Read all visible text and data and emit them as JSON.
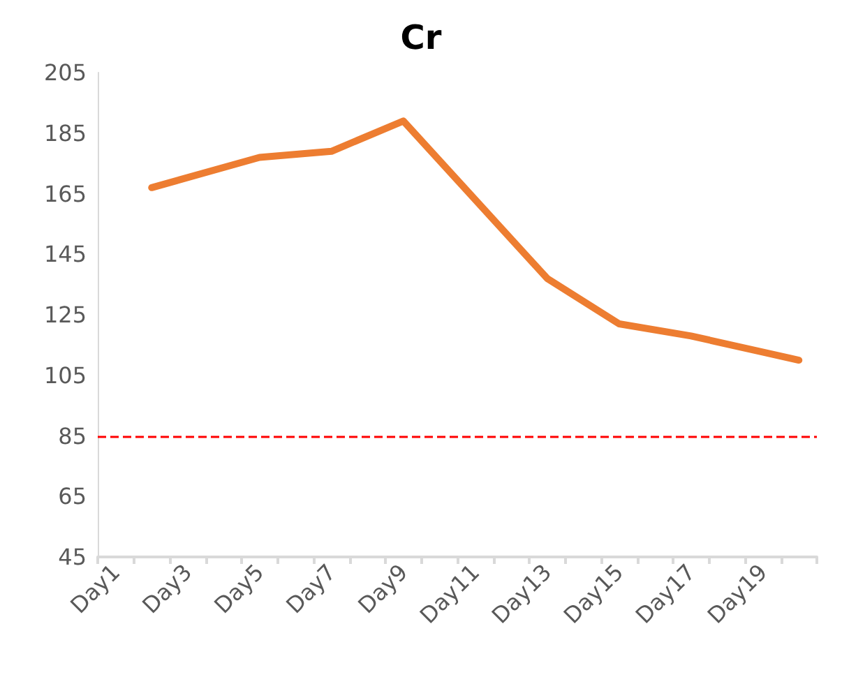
{
  "chart_data": {
    "type": "line",
    "title": "Cr",
    "categories": [
      "Day1",
      null,
      "Day3",
      null,
      "Day5",
      null,
      "Day7",
      null,
      "Day9",
      null,
      "Day11",
      null,
      "Day13",
      null,
      "Day15",
      null,
      "Day17",
      null,
      "Day19",
      null
    ],
    "series": [
      {
        "color": "#ed7d31",
        "values": [
          null,
          167,
          null,
          null,
          177,
          null,
          179,
          null,
          189,
          null,
          null,
          null,
          137,
          null,
          122,
          null,
          118,
          null,
          null,
          110
        ]
      }
    ],
    "ylim": [
      45,
      205
    ],
    "yticks": [
      45,
      65,
      85,
      105,
      125,
      145,
      165,
      185,
      205
    ],
    "ref_lines": [
      {
        "axis": "y",
        "value": 85,
        "color": "#ff0000",
        "line_style": "dashed"
      }
    ],
    "grid": false,
    "marker": "none",
    "line_style": "solid"
  }
}
